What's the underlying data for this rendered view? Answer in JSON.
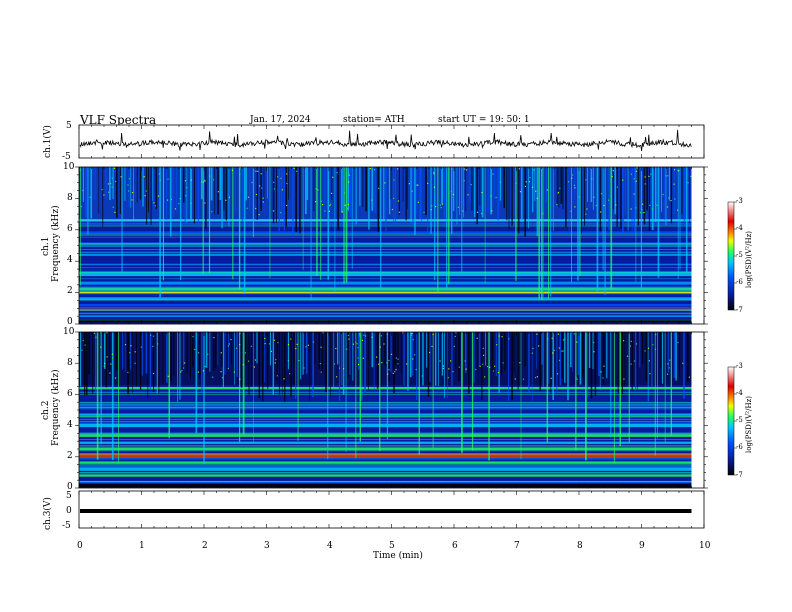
{
  "header": {
    "title": "VLF  Spectra",
    "date": "Jan.  17,  2024",
    "station": "station= ATH",
    "start": "start  UT  =    19: 50: 1"
  },
  "chart_data": {
    "type": "heatmap",
    "xlabel": "Time  (min)",
    "xlim": [
      0,
      10
    ],
    "xticks": [
      "0",
      "1",
      "2",
      "3",
      "4",
      "5",
      "6",
      "7",
      "8",
      "9",
      "10"
    ],
    "panels": {
      "ch1_wave": {
        "ylabel": "ch.1(V)",
        "ylim": [
          -5,
          5
        ],
        "yticks": [
          "5",
          "-5"
        ]
      },
      "ch1_spec": {
        "ylabel1": "ch.1",
        "ylabel2": "Frequency  (kHz)",
        "ylim": [
          0,
          10
        ],
        "yticks": [
          "10",
          "8",
          "6",
          "4",
          "2",
          "0"
        ]
      },
      "ch2_spec": {
        "ylabel1": "ch.2",
        "ylabel2": "Frequency  (kHz)",
        "ylim": [
          0,
          10
        ],
        "yticks": [
          "10",
          "8",
          "6",
          "4",
          "2",
          "0"
        ]
      },
      "ch3_wave": {
        "ylabel": "ch.3(V)",
        "ylim": [
          -5,
          5
        ],
        "yticks": [
          "5",
          "0",
          "-5"
        ]
      }
    },
    "colorbar": {
      "label": "log(PSD)(V²/Hz)",
      "range": [
        -7,
        -3
      ],
      "ticks": [
        "-3",
        "-4",
        "-5",
        "-6",
        "-7"
      ],
      "colors": [
        "#000000",
        "#0a1a9c",
        "#0050ff",
        "#00c8ff",
        "#20ff60",
        "#f0ff00",
        "#ff8000",
        "#e00000",
        "#ffffff"
      ]
    },
    "data_end_min": 9.8
  }
}
